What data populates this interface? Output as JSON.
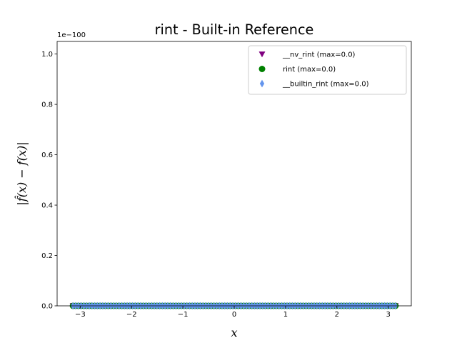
{
  "chart_data": {
    "type": "scatter",
    "title": "rint - Built-in Reference",
    "xlabel": "x",
    "ylabel": "|f̂(x) − f(x)|",
    "y_offset_label": "1e−100",
    "xlim": [
      -3.45,
      3.45
    ],
    "ylim": [
      0,
      1.05
    ],
    "x_ticks": [
      -3,
      -2,
      -1,
      0,
      1,
      2,
      3
    ],
    "x_tick_labels": [
      "−3",
      "−2",
      "−1",
      "0",
      "1",
      "2",
      "3"
    ],
    "y_ticks": [
      0.0,
      0.2,
      0.4,
      0.6,
      0.8,
      1.0
    ],
    "y_tick_labels": [
      "0.0",
      "0.2",
      "0.4",
      "0.6",
      "0.8",
      "1.0"
    ],
    "grid": false,
    "legend_position": "top-right",
    "x_range": [
      -3.14159,
      3.14159
    ],
    "series": [
      {
        "name": "__nv_rint (max=0.0)",
        "marker": "triangle-down",
        "color": "#800080",
        "y": 0
      },
      {
        "name": "rint (max=0.0)",
        "marker": "circle",
        "color": "#008000",
        "y": 0
      },
      {
        "name": "__builtin_rint (max=0.0)",
        "marker": "diamond",
        "color": "#6495ed",
        "y": 0
      }
    ]
  }
}
